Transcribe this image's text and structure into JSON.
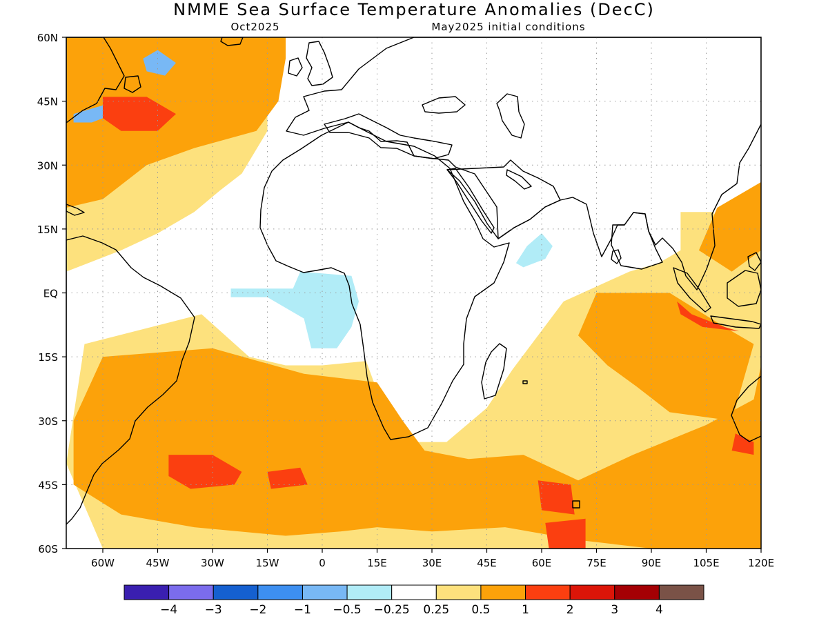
{
  "title": "NMME Sea Surface Temperature Anomalies (DecC)",
  "forecast_label": "Oct2025",
  "init_label": "May2025 initial conditions",
  "chart_data": {
    "type": "heatmap",
    "title": "NMME Sea Surface Temperature Anomalies (DecC)",
    "subtitle_left": "Oct2025",
    "subtitle_right": "May2025 initial conditions",
    "xlim": [
      -70,
      120
    ],
    "ylim": [
      -60,
      60
    ],
    "x_ticks": [
      {
        "value": -60,
        "label": "60W"
      },
      {
        "value": -45,
        "label": "45W"
      },
      {
        "value": -30,
        "label": "30W"
      },
      {
        "value": -15,
        "label": "15W"
      },
      {
        "value": 0,
        "label": "0"
      },
      {
        "value": 15,
        "label": "15E"
      },
      {
        "value": 30,
        "label": "30E"
      },
      {
        "value": 45,
        "label": "45E"
      },
      {
        "value": 60,
        "label": "60E"
      },
      {
        "value": 75,
        "label": "75E"
      },
      {
        "value": 90,
        "label": "90E"
      },
      {
        "value": 105,
        "label": "105E"
      },
      {
        "value": 120,
        "label": "120E"
      }
    ],
    "y_ticks": [
      {
        "value": 60,
        "label": "60N"
      },
      {
        "value": 45,
        "label": "45N"
      },
      {
        "value": 30,
        "label": "30N"
      },
      {
        "value": 15,
        "label": "15N"
      },
      {
        "value": 0,
        "label": "EQ"
      },
      {
        "value": -15,
        "label": "15S"
      },
      {
        "value": -30,
        "label": "30S"
      },
      {
        "value": -45,
        "label": "45S"
      },
      {
        "value": -60,
        "label": "60S"
      }
    ],
    "grid": true,
    "legend_position": "bottom",
    "colorbar": {
      "colors": [
        "#3a1fb0",
        "#7b6cec",
        "#1560d0",
        "#3d8ff0",
        "#78b8f5",
        "#b1ecf7",
        "#ffffff",
        "#fde17d",
        "#fca20a",
        "#fb3f10",
        "#dc1508",
        "#a40004",
        "#7a5247"
      ],
      "tick_labels": [
        "−4",
        "−3",
        "−2",
        "−1",
        "−0.5",
        "−0.25",
        "0.25",
        "0.5",
        "1",
        "2",
        "3",
        "4"
      ]
    },
    "regions": [
      {
        "level": "0.25 to 0.5",
        "color": "#fde17d",
        "rings": [
          [
            [
              -70,
              60
            ],
            [
              -15,
              60
            ],
            [
              -15,
              38
            ],
            [
              -22,
              28
            ],
            [
              -28,
              24
            ],
            [
              -35,
              19
            ],
            [
              -45,
              14
            ],
            [
              -55,
              10
            ],
            [
              -70,
              5
            ]
          ],
          [
            [
              -65,
              -12
            ],
            [
              -33,
              -5
            ],
            [
              -20,
              -15
            ],
            [
              -10,
              -17
            ],
            [
              0,
              -17
            ],
            [
              12,
              -16
            ],
            [
              18,
              -30
            ],
            [
              22,
              -35
            ],
            [
              34,
              -35
            ],
            [
              45,
              -27
            ],
            [
              52,
              -18
            ],
            [
              66,
              -2
            ],
            [
              84,
              5
            ],
            [
              92,
              7
            ],
            [
              98,
              10
            ],
            [
              106,
              15
            ],
            [
              110,
              20
            ],
            [
              120,
              22
            ],
            [
              120,
              -60
            ],
            [
              -60,
              -60
            ],
            [
              -70,
              -40
            ]
          ],
          [
            [
              98,
              19
            ],
            [
              107,
              19
            ],
            [
              110,
              10
            ],
            [
              104,
              4
            ],
            [
              98,
              6
            ]
          ]
        ]
      },
      {
        "level": "0.5 to 1",
        "color": "#fca20a",
        "rings": [
          [
            [
              -70,
              60
            ],
            [
              -10,
              60
            ],
            [
              -10,
              55
            ],
            [
              -12,
              45
            ],
            [
              -18,
              38
            ],
            [
              -35,
              34
            ],
            [
              -48,
              30
            ],
            [
              -60,
              22
            ],
            [
              -70,
              20
            ]
          ],
          [
            [
              -60,
              -15
            ],
            [
              -30,
              -13
            ],
            [
              -5,
              -19
            ],
            [
              15,
              -21
            ],
            [
              22,
              -30
            ],
            [
              28,
              -37
            ],
            [
              40,
              -39
            ],
            [
              55,
              -38
            ],
            [
              70,
              -44
            ],
            [
              85,
              -38
            ],
            [
              105,
              -31
            ],
            [
              118,
              -25
            ],
            [
              120,
              -17
            ],
            [
              120,
              -60
            ],
            [
              90,
              -60
            ],
            [
              70,
              -58
            ],
            [
              50,
              -55
            ],
            [
              30,
              -56
            ],
            [
              15,
              -55
            ],
            [
              5,
              -56
            ],
            [
              -10,
              -57
            ],
            [
              -35,
              -55
            ],
            [
              -55,
              -52
            ],
            [
              -68,
              -45
            ],
            [
              -68,
              -30
            ]
          ],
          [
            [
              75,
              0
            ],
            [
              95,
              0
            ],
            [
              110,
              -8
            ],
            [
              118,
              -12
            ],
            [
              112,
              -30
            ],
            [
              95,
              -28
            ],
            [
              86,
              -22
            ],
            [
              78,
              -17
            ],
            [
              70,
              -10
            ]
          ],
          [
            [
              103,
              10
            ],
            [
              108,
              20
            ],
            [
              120,
              26
            ],
            [
              120,
              10
            ],
            [
              112,
              5
            ]
          ]
        ]
      },
      {
        "level": "-0.25 to -0.5",
        "color": "#b1ecf7",
        "rings": [
          [
            [
              -25,
              1
            ],
            [
              -8,
              1
            ],
            [
              -6,
              5
            ],
            [
              8,
              4
            ],
            [
              10,
              -2
            ],
            [
              8,
              -8
            ],
            [
              4,
              -13
            ],
            [
              -3,
              -13
            ],
            [
              -5,
              -6
            ],
            [
              -15,
              -1
            ],
            [
              -25,
              -1
            ]
          ],
          [
            [
              53,
              7
            ],
            [
              56,
              11
            ],
            [
              60,
              14
            ],
            [
              63,
              11
            ],
            [
              61,
              8
            ],
            [
              55,
              6
            ]
          ]
        ]
      },
      {
        "level": "-0.5 to -1",
        "color": "#78b8f5",
        "rings": [
          [
            [
              -49,
              55
            ],
            [
              -45,
              57
            ],
            [
              -40,
              54
            ],
            [
              -43,
              51
            ],
            [
              -48,
              52
            ]
          ],
          [
            [
              -68,
              42
            ],
            [
              -60,
              44
            ],
            [
              -57,
              42
            ],
            [
              -63,
              40
            ],
            [
              -68,
              40
            ]
          ]
        ]
      },
      {
        "level": "1 to 2",
        "color": "#fb3f10",
        "rings": [
          [
            [
              -60,
              46
            ],
            [
              -48,
              46
            ],
            [
              -40,
              42
            ],
            [
              -45,
              38
            ],
            [
              -55,
              38
            ],
            [
              -60,
              41
            ]
          ],
          [
            [
              -42,
              -38
            ],
            [
              -30,
              -38
            ],
            [
              -22,
              -42
            ],
            [
              -24,
              -45
            ],
            [
              -36,
              -46
            ],
            [
              -42,
              -43
            ]
          ],
          [
            [
              -15,
              -42
            ],
            [
              -6,
              -41
            ],
            [
              -4,
              -45
            ],
            [
              -14,
              -46
            ]
          ],
          [
            [
              59,
              -44
            ],
            [
              68,
              -45
            ],
            [
              69,
              -52
            ],
            [
              60,
              -51
            ]
          ],
          [
            [
              61,
              -54
            ],
            [
              72,
              -53
            ],
            [
              72,
              -60
            ],
            [
              62,
              -60
            ]
          ],
          [
            [
              97,
              -2
            ],
            [
              101,
              -5
            ],
            [
              110,
              -8
            ],
            [
              114,
              -9
            ],
            [
              104,
              -8
            ],
            [
              98,
              -5
            ]
          ],
          [
            [
              113,
              -33
            ],
            [
              118,
              -35
            ],
            [
              118,
              -38
            ],
            [
              112,
              -37
            ]
          ]
        ]
      }
    ],
    "locations": [
      {
        "name": "Africa",
        "color": "#fca20a"
      },
      {
        "name": "Mediterranean Sea",
        "color": "#fca20a"
      },
      {
        "name": "Black Sea",
        "color": "#fb3f10"
      }
    ]
  }
}
